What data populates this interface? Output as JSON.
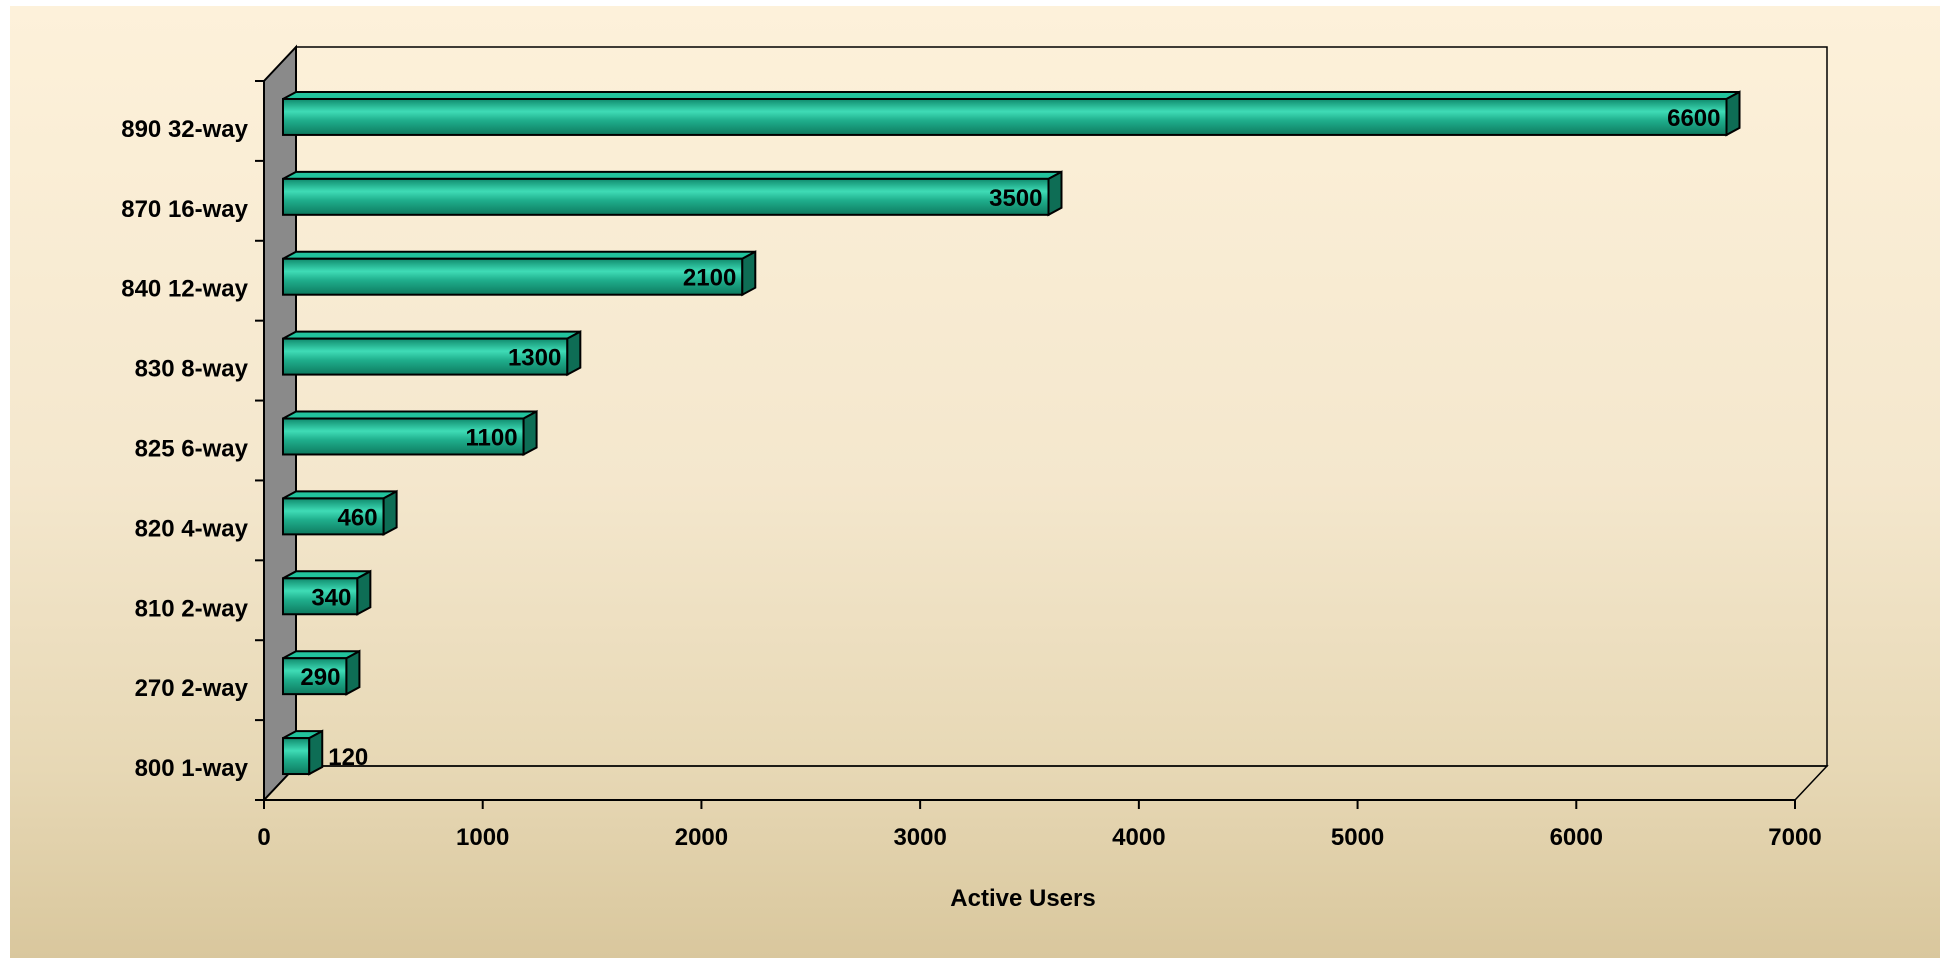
{
  "chart_data": {
    "type": "bar",
    "orientation": "horizontal",
    "style": "3d",
    "categories": [
      "890 32-way",
      "870 16-way",
      "840 12-way",
      "830 8-way",
      "825 6-way",
      "820 4-way",
      "810 2-way",
      "270 2-way",
      "800 1-way"
    ],
    "values": [
      6600,
      3500,
      2100,
      1300,
      1100,
      460,
      340,
      290,
      120
    ],
    "data_labels": [
      "6600",
      "3500",
      "2100",
      "1300",
      "1100",
      "460",
      "340",
      "290",
      "120"
    ],
    "xlabel": "Active Users",
    "ylabel": "",
    "title": "",
    "xlim": [
      0,
      7000
    ],
    "x_ticks": [
      "0",
      "1000",
      "2000",
      "3000",
      "4000",
      "5000",
      "6000",
      "7000"
    ],
    "grid": false,
    "legend": "none",
    "colors": {
      "bar_front": "#1fae8c",
      "bar_highlight": "#3fdcb6",
      "bar_top": "#22c39d",
      "bar_side": "#0e6d55",
      "wall": "#8a8a8a",
      "background_top": "#fdf1da",
      "background_bottom": "#d9c79d"
    }
  }
}
